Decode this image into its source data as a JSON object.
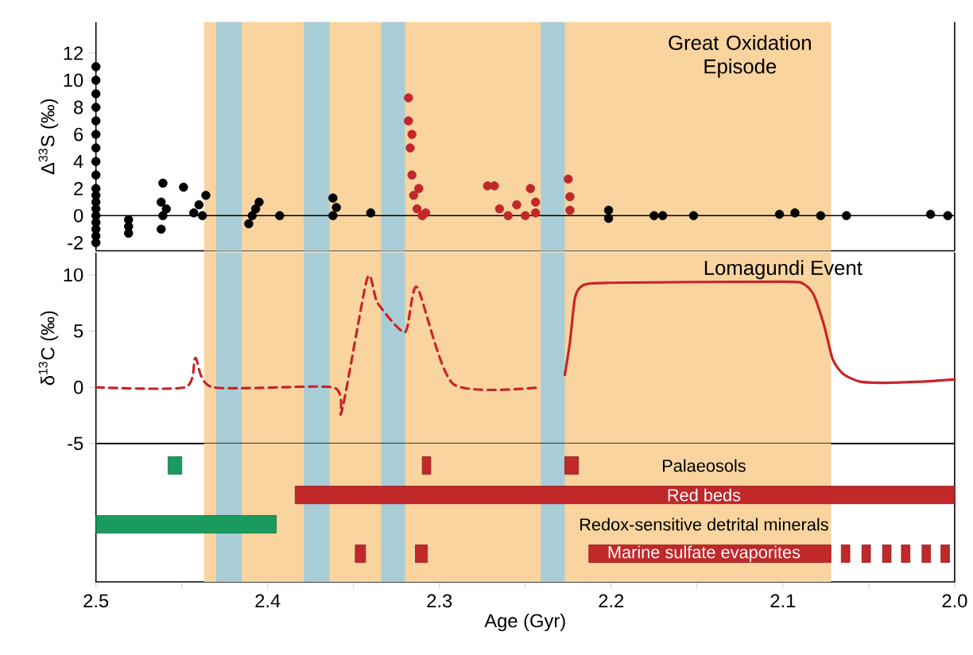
{
  "chart_data": [
    {
      "type": "scatter",
      "ylabel": "Δ$^{33}$S (‰)",
      "xlim": [
        2.5,
        2.0
      ],
      "ylim": [
        -2.6,
        14.3
      ],
      "yticks": [
        -2,
        0,
        2,
        4,
        6,
        8,
        10,
        12
      ],
      "tick_labels": "y",
      "bands": [
        {
          "axis": "x",
          "from": 2.437,
          "to": 2.072,
          "color": "#f9d49e",
          "label": "Great Oxidation Episode"
        },
        {
          "axis": "x",
          "from": 2.43,
          "to": 2.415,
          "color": "#a9cdd6"
        },
        {
          "axis": "x",
          "from": 2.379,
          "to": 2.364,
          "color": "#a9cdd6"
        },
        {
          "axis": "x",
          "from": 2.334,
          "to": 2.32,
          "color": "#a9cdd6"
        },
        {
          "axis": "x",
          "from": 2.241,
          "to": 2.227,
          "color": "#a9cdd6"
        }
      ],
      "ref_lines": [
        {
          "axis": "y",
          "value": 0,
          "color": "#000000"
        }
      ],
      "series": [
        {
          "color": "#000000",
          "x": [
            2.5,
            2.5,
            2.5,
            2.5,
            2.5,
            2.5,
            2.5,
            2.5,
            2.5,
            2.5,
            2.5,
            2.5,
            2.5,
            2.5,
            2.5,
            2.5,
            2.5,
            2.5,
            2.481,
            2.481,
            2.481,
            2.462,
            2.461,
            2.462,
            2.461,
            2.459,
            2.449,
            2.443,
            2.438,
            2.436,
            2.44,
            2.411,
            2.409,
            2.407,
            2.405,
            2.393,
            2.362,
            2.36,
            2.362,
            2.34,
            2.2015,
            2.2015,
            2.175,
            2.17,
            2.152,
            2.102,
            2.093,
            2.078,
            2.063,
            2.014,
            2.004
          ],
          "values": [
            -2,
            -1.5,
            -1,
            -0.5,
            0,
            0.5,
            1,
            1.5,
            2,
            3,
            4,
            5,
            6,
            7,
            8,
            9,
            10,
            11,
            -1.3,
            -0.8,
            -0.3,
            -1,
            0,
            1,
            2.4,
            0.5,
            2.1,
            0.2,
            0,
            1.5,
            0.8,
            -0.6,
            0,
            0.5,
            1,
            0,
            0,
            0.6,
            1.3,
            0.2,
            -0.2,
            0.4,
            0,
            0,
            0,
            0.1,
            0.2,
            0,
            0,
            0.1,
            0
          ]
        },
        {
          "color": "#c0282a",
          "x": [
            2.318,
            2.318,
            2.317,
            2.316,
            2.315,
            2.313,
            2.31,
            2.312,
            2.308,
            2.316,
            2.272,
            2.268,
            2.265,
            2.26,
            2.255,
            2.25,
            2.247,
            2.244,
            2.244,
            2.225,
            2.224,
            2.224
          ],
          "values": [
            8.7,
            7,
            5,
            3,
            1.5,
            0.5,
            0,
            2,
            0.2,
            6,
            2.2,
            2.2,
            0.5,
            0,
            0.8,
            0,
            2,
            1,
            0.2,
            2.7,
            1.4,
            0.4
          ]
        }
      ]
    },
    {
      "type": "line",
      "ylabel": "δ$^{13}$C (‰)",
      "xlim": [
        2.5,
        2.0
      ],
      "ylim": [
        -5,
        12
      ],
      "yticks": [
        -5,
        0,
        5,
        10
      ],
      "tick_labels": "y",
      "bands": [
        {
          "axis": "x",
          "from": 2.437,
          "to": 2.072,
          "color": "#f9d49e"
        },
        {
          "axis": "x",
          "from": 2.43,
          "to": 2.415,
          "color": "#a9cdd6"
        },
        {
          "axis": "x",
          "from": 2.379,
          "to": 2.364,
          "color": "#a9cdd6"
        },
        {
          "axis": "x",
          "from": 2.334,
          "to": 2.32,
          "color": "#a9cdd6"
        },
        {
          "axis": "x",
          "from": 2.241,
          "to": 2.227,
          "color": "#a9cdd6"
        }
      ],
      "annotations": [
        "Lomagundi Event"
      ],
      "series": [
        {
          "color": "#c8242a",
          "line_style": "dashed",
          "x": [
            2.5,
            2.448,
            2.442,
            2.432,
            2.362,
            2.357,
            2.342,
            2.336,
            2.32,
            2.313,
            2.292,
            2.241
          ],
          "values": [
            0,
            0,
            2.6,
            0,
            0,
            -2.2,
            9.7,
            7.5,
            4.9,
            8.9,
            0.3,
            0
          ]
        },
        {
          "color": "#c8242a",
          "line_style": "solid",
          "x": [
            2.227,
            2.224,
            2.221,
            2.216,
            2.2,
            2.1,
            2.088,
            2.082,
            2.076,
            2.071,
            2.065,
            2.055,
            2.04,
            2.02,
            2.0
          ],
          "values": [
            1.1,
            4,
            8,
            9.1,
            9.3,
            9.4,
            9.2,
            8.2,
            5.5,
            2.5,
            1.2,
            0.5,
            0.4,
            0.5,
            0.7
          ]
        }
      ]
    },
    {
      "type": "bar",
      "orientation": "horizontal",
      "xlabel": "Age (Gyr)",
      "xlim": [
        2.5,
        2.0
      ],
      "xticks": [
        2.5,
        {
          "value": 2.45,
          "label": null
        },
        2.4,
        {
          "value": 2.35,
          "label": null
        },
        2.3,
        {
          "value": 2.25,
          "label": null
        },
        2.2,
        {
          "value": 2.15,
          "label": null
        },
        2.1,
        {
          "value": 2.05,
          "label": null
        },
        {
          "value": 2.0,
          "label": "2.0"
        }
      ],
      "categories": [
        "Palaeosols",
        "Red beds",
        "Redox-sensitive detrital minerals",
        "Marine sulfate evaporites"
      ],
      "bands": [
        {
          "axis": "x",
          "from": 2.437,
          "to": 2.072,
          "color": "#f9d49e"
        },
        {
          "axis": "x",
          "from": 2.43,
          "to": 2.415,
          "color": "#a9cdd6"
        },
        {
          "axis": "x",
          "from": 2.379,
          "to": 2.364,
          "color": "#a9cdd6"
        },
        {
          "axis": "x",
          "from": 2.334,
          "to": 2.32,
          "color": "#a9cdd6"
        },
        {
          "axis": "x",
          "from": 2.241,
          "to": 2.227,
          "color": "#a9cdd6"
        }
      ],
      "series": [
        {
          "color": "#1a9a5c",
          "base": [
            2.45,
            null,
            2.395,
            null
          ],
          "values": [
            0.008,
            null,
            0.105,
            null
          ]
        },
        {
          "color": "#c0282a",
          "base": [
            2.305,
            2.0,
            null,
            2.343
          ],
          "values": [
            0.005,
            0.384,
            null,
            0.006
          ]
        },
        {
          "color": "#c0282a",
          "base": [
            2.219,
            null,
            null,
            2.307
          ],
          "values": [
            0.008,
            null,
            null,
            0.007
          ]
        },
        {
          "color": "#c0282a",
          "base": [
            null,
            null,
            null,
            2.072
          ],
          "values": [
            null,
            null,
            null,
            0.141
          ]
        },
        {
          "color": "#c0282a",
          "base": [
            null,
            null,
            null,
            2.061
          ],
          "values": [
            null,
            null,
            null,
            0.005
          ]
        },
        {
          "color": "#c0282a",
          "base": [
            null,
            null,
            null,
            2.049
          ],
          "values": [
            null,
            null,
            null,
            0.005
          ]
        },
        {
          "color": "#c0282a",
          "base": [
            null,
            null,
            null,
            2.037
          ],
          "values": [
            null,
            null,
            null,
            0.005
          ]
        },
        {
          "color": "#c0282a",
          "base": [
            null,
            null,
            null,
            2.026
          ],
          "values": [
            null,
            null,
            null,
            0.005
          ]
        },
        {
          "color": "#c0282a",
          "base": [
            null,
            null,
            null,
            2.014
          ],
          "values": [
            null,
            null,
            null,
            0.005
          ]
        },
        {
          "color": "#c0282a",
          "base": [
            null,
            null,
            null,
            2.003
          ],
          "values": [
            null,
            null,
            null,
            0.005
          ]
        }
      ]
    }
  ]
}
